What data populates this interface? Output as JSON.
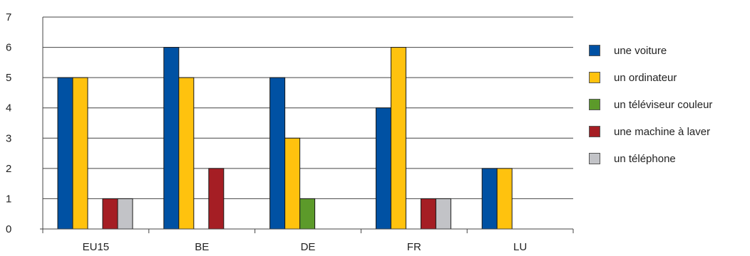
{
  "chart_data": {
    "type": "bar",
    "categories": [
      "EU15",
      "BE",
      "DE",
      "FR",
      "LU"
    ],
    "series": [
      {
        "name": "une voiture",
        "color": "#0051a3",
        "values": [
          5,
          6,
          5,
          4,
          2
        ]
      },
      {
        "name": "un ordinateur",
        "color": "#ffc20e",
        "values": [
          5,
          5,
          3,
          6,
          2
        ]
      },
      {
        "name": "un téléviseur couleur",
        "color": "#5c9a2a",
        "values": [
          0,
          0,
          1,
          0,
          0
        ]
      },
      {
        "name": "une machine à laver",
        "color": "#a51e24",
        "values": [
          1,
          2,
          0,
          1,
          0
        ]
      },
      {
        "name": "un téléphone",
        "color": "#c2c3c7",
        "values": [
          1,
          0,
          0,
          1,
          0
        ]
      }
    ],
    "ylim": [
      0,
      7
    ],
    "yticks": [
      0,
      1,
      2,
      3,
      4,
      5,
      6,
      7
    ],
    "grid": true,
    "legend_position": "right",
    "title": "",
    "xlabel": "",
    "ylabel": ""
  }
}
